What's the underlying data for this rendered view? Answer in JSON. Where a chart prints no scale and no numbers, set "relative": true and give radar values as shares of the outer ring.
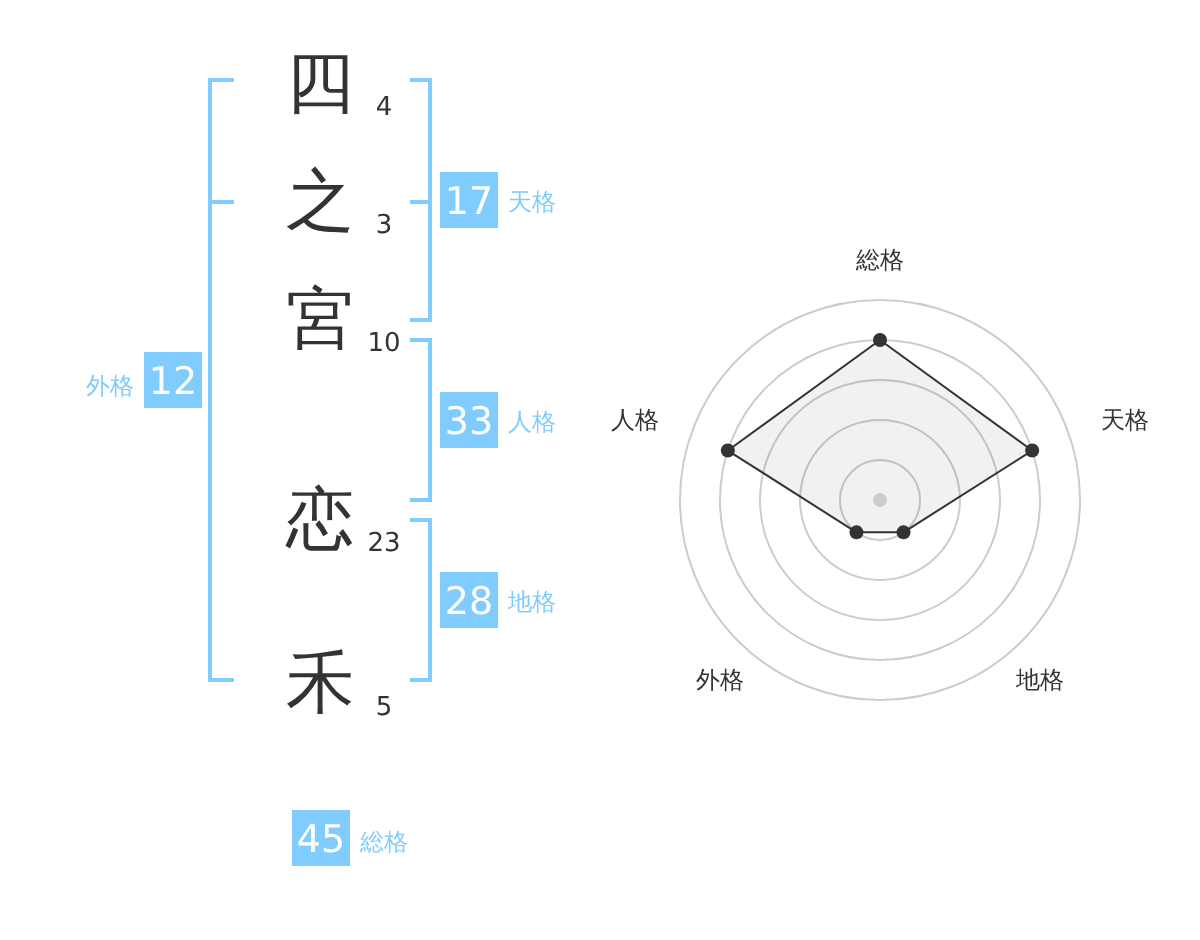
{
  "chart_data": [
    {
      "type": "other",
      "categories": [
        "四",
        "之",
        "宮",
        null,
        "恋",
        "禾"
      ],
      "values": [
        4,
        3,
        10,
        null,
        23,
        5
      ],
      "color": "#333333",
      "data_labels": true
    },
    {
      "type": "other",
      "categories": [
        "天格",
        "人格",
        "地格",
        "外格",
        "総格"
      ],
      "values": [
        17,
        33,
        28,
        12,
        45
      ],
      "color": "#80ccff",
      "data_labels": true
    },
    {
      "type": "radar",
      "categories": [
        "総格",
        "天格",
        "地格",
        "外格",
        "人格"
      ],
      "relative": true,
      "series": [
        {
          "color": "#333333",
          "values": [
            0.8,
            0.8,
            0.2,
            0.2,
            0.8
          ]
        }
      ],
      "grid": true,
      "marker": "circle"
    }
  ]
}
